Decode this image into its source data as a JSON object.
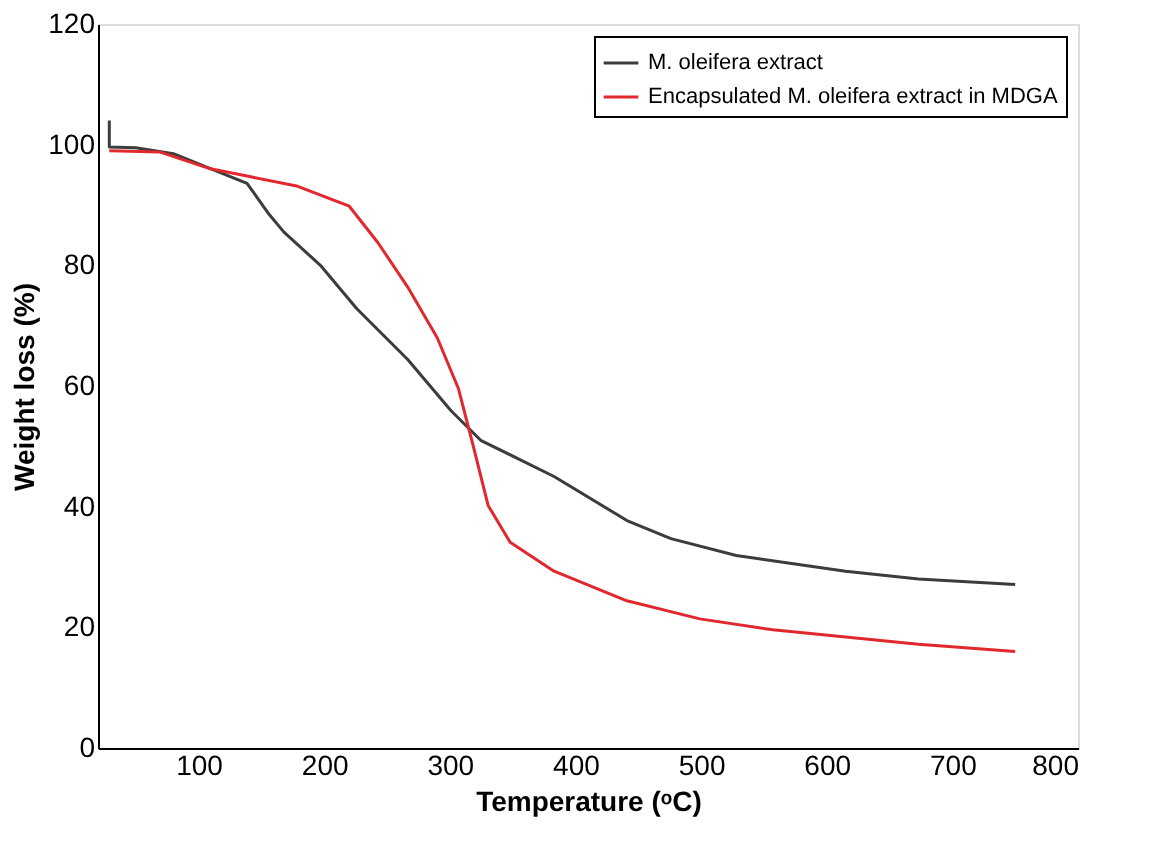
{
  "chart_data": {
    "type": "line",
    "xlabel": "Temperature (ᵒC)",
    "ylabel": "Weight loss (%)",
    "xlim": [
      20,
      800
    ],
    "xticks": [
      100,
      200,
      300,
      400,
      500,
      600,
      700,
      800
    ],
    "ylim": [
      0,
      120
    ],
    "yticks": [
      0,
      20,
      40,
      60,
      80,
      100,
      120
    ],
    "grid": false,
    "legend": "top right",
    "marker": "none",
    "line_style": "solid",
    "series": [
      {
        "name": "M. oleifera extract",
        "color": "#3c3c3c",
        "x": [
          29,
          29,
          50,
          80,
          110,
          138.6,
          156,
          168,
          197,
          226,
          266.5,
          301,
          324.6,
          383,
          441,
          476,
          528,
          615,
          673,
          750
        ],
        "values": [
          104,
          99.6,
          99.5,
          98.5,
          96,
          93.6,
          88.5,
          85.5,
          80,
          72.8,
          64.4,
          55.9,
          51,
          45,
          37.7,
          34.7,
          31.9,
          29.3,
          28,
          27.1
        ]
      },
      {
        "name": "Encapsulated M. oleifera extract in MDGA",
        "color": "#e0282e",
        "x": [
          29,
          69,
          109.5,
          138.6,
          179,
          220,
          243,
          266.5,
          290,
          307,
          319,
          330.5,
          348,
          383,
          441,
          499,
          557,
          615,
          673,
          750
        ],
        "values": [
          99,
          98.8,
          96,
          94.8,
          93.1,
          89.8,
          83.7,
          76.4,
          68,
          59.5,
          49.8,
          40.2,
          34.1,
          29.3,
          24.4,
          21.4,
          19.6,
          18.4,
          17.2,
          16
        ]
      }
    ]
  }
}
